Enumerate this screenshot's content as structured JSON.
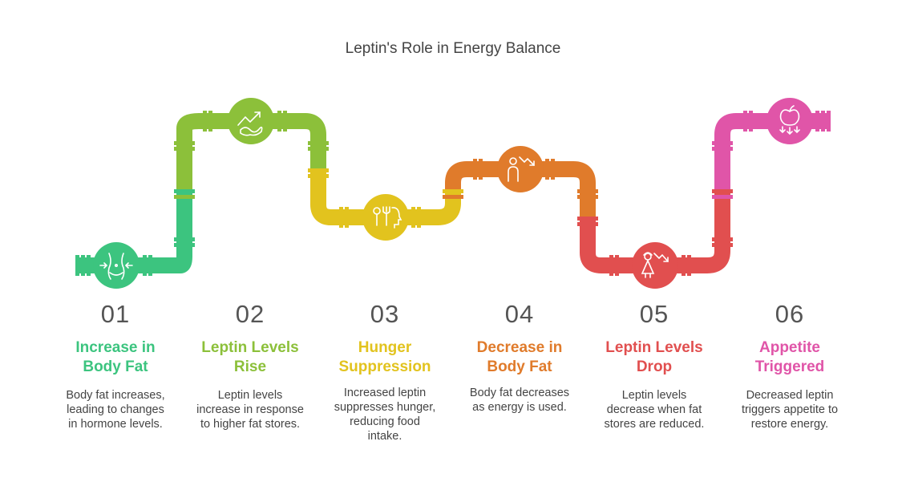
{
  "title": "Leptin's Role in Energy Balance",
  "colors": {
    "step1": "#3cc47f",
    "step2": "#8cc03a",
    "step3": "#e2c31e",
    "step4": "#e07b2b",
    "step5": "#e14f4f",
    "step6": "#e055a8"
  },
  "steps": [
    {
      "number": "01",
      "heading_lines": [
        "Increase in",
        "Body Fat"
      ],
      "desc_lines": [
        "Body fat increases,",
        "leading to changes",
        "in hormone levels."
      ],
      "icon": "waist-measure-icon"
    },
    {
      "number": "02",
      "heading_lines": [
        "Leptin Levels",
        "Rise"
      ],
      "desc_lines": [
        "Leptin levels",
        "increase in response",
        "to higher fat stores."
      ],
      "icon": "trend-up-icon"
    },
    {
      "number": "03",
      "heading_lines": [
        "Hunger",
        "Suppression"
      ],
      "desc_lines": [
        "Increased leptin",
        "suppresses hunger,",
        "reducing food",
        "intake."
      ],
      "icon": "head-fork-icon"
    },
    {
      "number": "04",
      "heading_lines": [
        "Decrease in",
        "Body Fat"
      ],
      "desc_lines": [
        "Body fat decreases",
        "as energy is used."
      ],
      "icon": "person-trend-down-icon"
    },
    {
      "number": "05",
      "heading_lines": [
        "Leptin Levels",
        "Drop"
      ],
      "desc_lines": [
        "Leptin levels",
        "decrease when fat",
        "stores are reduced."
      ],
      "icon": "woman-trend-down-icon"
    },
    {
      "number": "06",
      "heading_lines": [
        "Appetite",
        "Triggered"
      ],
      "desc_lines": [
        "Decreased leptin",
        "triggers appetite to",
        "restore energy."
      ],
      "icon": "apple-arrows-icon"
    }
  ]
}
